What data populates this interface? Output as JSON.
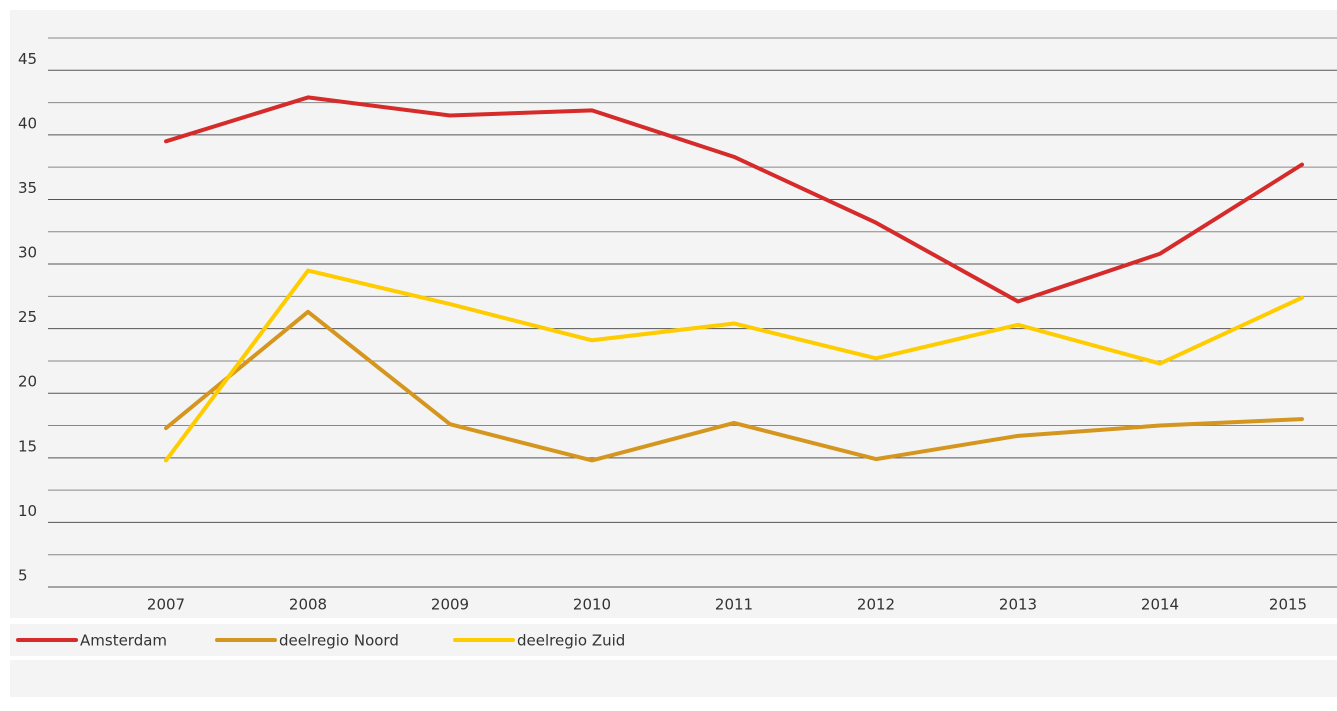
{
  "chart_data": {
    "type": "line",
    "categories": [
      "2007",
      "2008",
      "2009",
      "2010",
      "2011",
      "2012",
      "2013",
      "2014",
      "2015"
    ],
    "series": [
      {
        "name": "Amsterdam",
        "color": "#d52b2b",
        "values": [
          39.5,
          42.9,
          41.5,
          41.9,
          38.3,
          33.2,
          27.1,
          30.8,
          37.7
        ]
      },
      {
        "name": "deelregio Noord",
        "color": "#d4961e",
        "values": [
          17.3,
          26.3,
          17.6,
          14.8,
          17.7,
          14.9,
          16.7,
          17.5,
          18.0
        ]
      },
      {
        "name": "deelregio Zuid",
        "color": "#ffcc00",
        "values": [
          14.8,
          29.5,
          26.9,
          24.1,
          25.4,
          22.7,
          25.3,
          22.3,
          27.4
        ]
      }
    ],
    "ylim": [
      5,
      47.5
    ],
    "yticks": [
      5,
      10,
      15,
      20,
      25,
      30,
      35,
      40,
      45
    ],
    "minor_yticks": [
      7.5,
      12.5,
      17.5,
      22.5,
      27.5,
      32.5,
      37.5,
      42.5,
      47.5
    ],
    "grid": true,
    "legend": "bottom"
  }
}
